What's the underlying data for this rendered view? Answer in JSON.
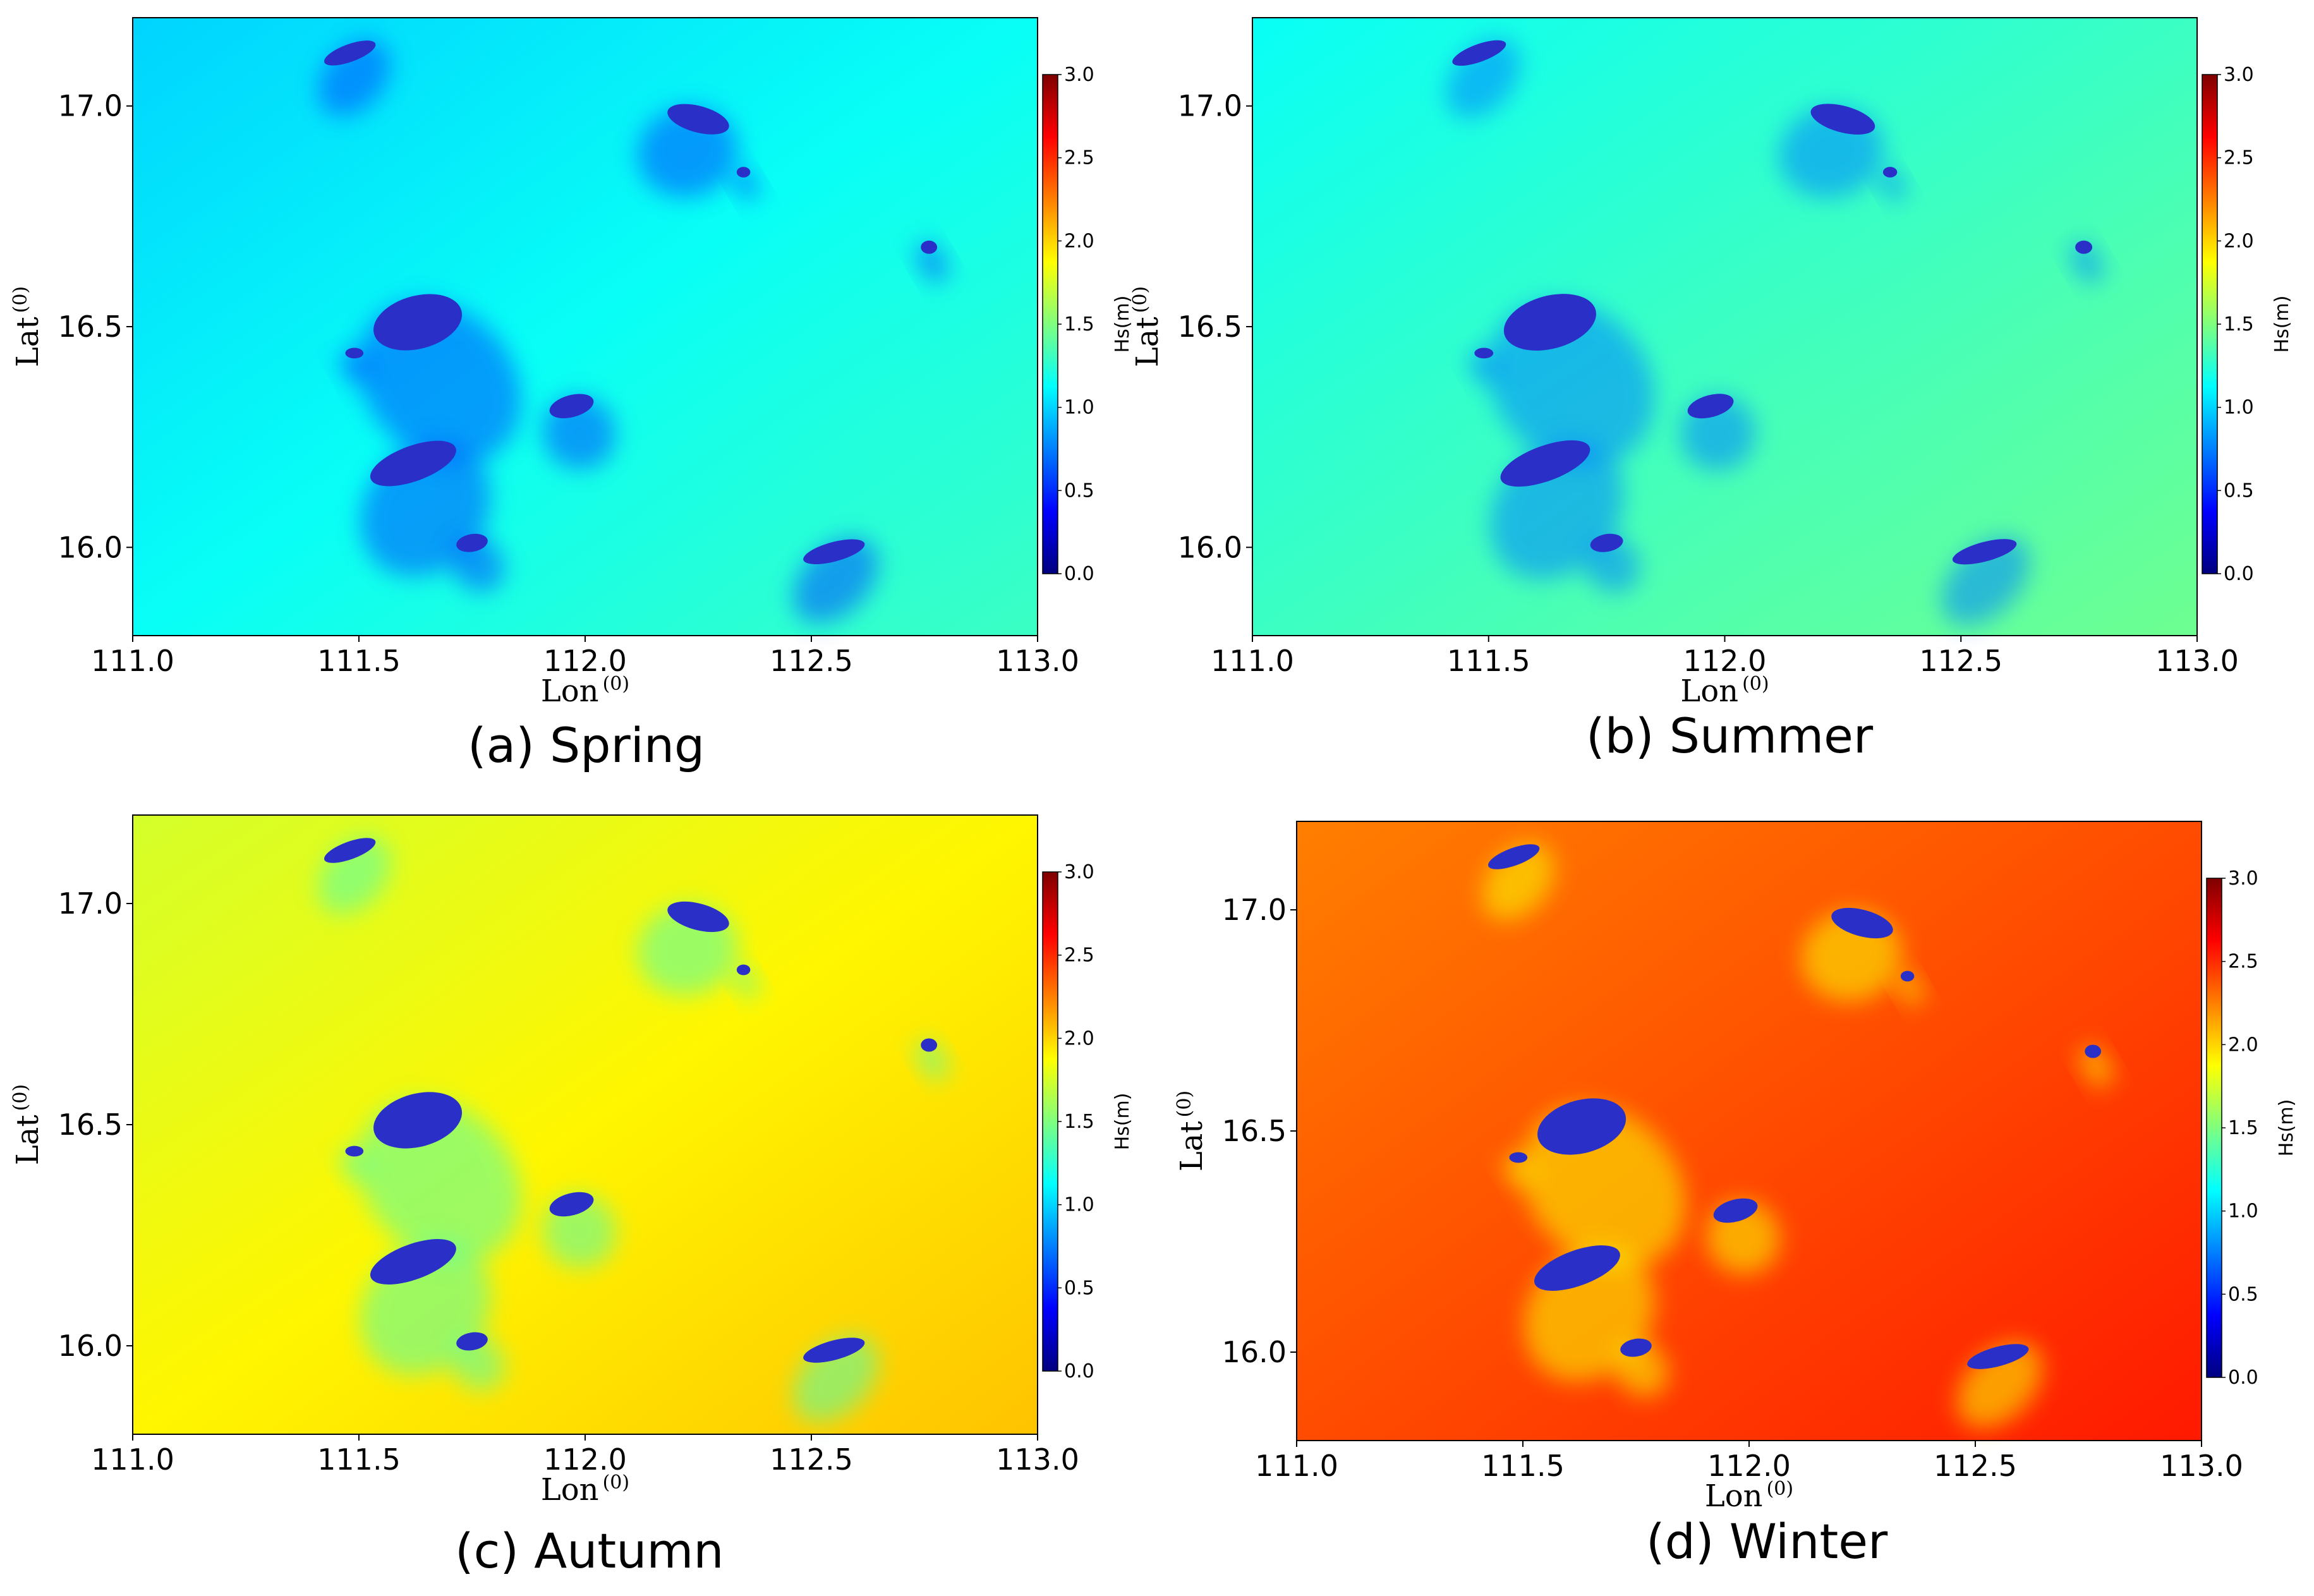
{
  "colors": {
    "spring_sea": "#22d3e6",
    "summer_sea": "#2de8cc",
    "autumn_sea": "#b8ef4a",
    "winter_sea": "#f56a0c",
    "island": "#2a2fc8",
    "colormap": [
      "#00007f",
      "#0000ff",
      "#007fff",
      "#00ffff",
      "#7fff7f",
      "#ffff00",
      "#ff7f00",
      "#ff0000",
      "#7f0000"
    ]
  },
  "chart_data": [
    {
      "type": "heatmap",
      "panel_caption": "(a) Spring",
      "xlabel": "Lon",
      "ylabel": "Lat",
      "unit_sup": "(0)",
      "xlim": [
        111.0,
        113.0
      ],
      "ylim": [
        15.8,
        17.2
      ],
      "xticks": [
        "111.0",
        "111.5",
        "112.0",
        "112.5",
        "113.0"
      ],
      "yticks": [
        "16.0",
        "16.5",
        "17.0"
      ],
      "colorbar": {
        "label": "Hs(m)",
        "ticks": [
          "0.0",
          "0.5",
          "1.0",
          "1.5",
          "2.0",
          "2.5",
          "3.0"
        ],
        "range": [
          0,
          3.0
        ]
      },
      "background_hs": 1.15
    },
    {
      "type": "heatmap",
      "panel_caption": "(b) Summer",
      "xlabel": "Lon",
      "ylabel": "Lat",
      "unit_sup": "(0)",
      "xlim": [
        111.0,
        113.0
      ],
      "ylim": [
        15.8,
        17.2
      ],
      "xticks": [
        "111.0",
        "111.5",
        "112.0",
        "112.5",
        "113.0"
      ],
      "yticks": [
        "16.0",
        "16.5",
        "17.0"
      ],
      "colorbar": {
        "label": "Hs(m)",
        "ticks": [
          "0.0",
          "0.5",
          "1.0",
          "1.5",
          "2.0",
          "2.5",
          "3.0"
        ],
        "range": [
          0,
          3.0
        ]
      },
      "background_hs": 1.3
    },
    {
      "type": "heatmap",
      "panel_caption": "(c) Autumn",
      "xlabel": "Lon",
      "ylabel": "Lat",
      "unit_sup": "(0)",
      "xlim": [
        111.0,
        113.0
      ],
      "ylim": [
        15.8,
        17.2
      ],
      "xticks": [
        "111.0",
        "111.5",
        "112.0",
        "112.5",
        "113.0"
      ],
      "yticks": [
        "16.0",
        "16.5",
        "17.0"
      ],
      "colorbar": {
        "label": "Hs(m)",
        "ticks": [
          "0.0",
          "0.5",
          "1.0",
          "1.5",
          "2.0",
          "2.5",
          "3.0"
        ],
        "range": [
          0,
          3.0
        ]
      },
      "background_hs": 1.9
    },
    {
      "type": "heatmap",
      "panel_caption": "(d) Winter",
      "xlabel": "Lon",
      "ylabel": "Lat",
      "unit_sup": "(0)",
      "xlim": [
        111.0,
        113.0
      ],
      "ylim": [
        15.8,
        17.2
      ],
      "xticks": [
        "111.0",
        "111.5",
        "112.0",
        "112.5",
        "113.0"
      ],
      "yticks": [
        "16.0",
        "16.5",
        "17.0"
      ],
      "colorbar": {
        "label": "Hs(m)",
        "ticks": [
          "0.0",
          "0.5",
          "1.0",
          "1.5",
          "2.0",
          "2.5",
          "3.0"
        ],
        "range": [
          0,
          3.0
        ]
      },
      "background_hs": 2.4
    }
  ],
  "islands": [
    {
      "lon": 111.48,
      "lat": 17.12,
      "rx": 0.06,
      "ry": 0.02,
      "rot": -20
    },
    {
      "lon": 112.25,
      "lat": 16.97,
      "rx": 0.07,
      "ry": 0.03,
      "rot": 15
    },
    {
      "lon": 112.35,
      "lat": 16.85,
      "rx": 0.015,
      "ry": 0.012,
      "rot": 0
    },
    {
      "lon": 112.76,
      "lat": 16.68,
      "rx": 0.018,
      "ry": 0.015,
      "rot": 0
    },
    {
      "lon": 111.63,
      "lat": 16.51,
      "rx": 0.1,
      "ry": 0.06,
      "rot": -15
    },
    {
      "lon": 111.49,
      "lat": 16.44,
      "rx": 0.02,
      "ry": 0.012,
      "rot": 0
    },
    {
      "lon": 111.97,
      "lat": 16.32,
      "rx": 0.05,
      "ry": 0.025,
      "rot": -15
    },
    {
      "lon": 111.62,
      "lat": 16.19,
      "rx": 0.1,
      "ry": 0.04,
      "rot": -20
    },
    {
      "lon": 111.75,
      "lat": 16.01,
      "rx": 0.035,
      "ry": 0.02,
      "rot": -10
    },
    {
      "lon": 112.55,
      "lat": 15.99,
      "rx": 0.07,
      "ry": 0.022,
      "rot": -15
    }
  ]
}
